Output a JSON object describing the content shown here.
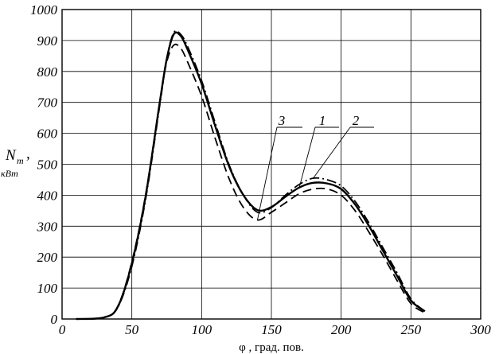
{
  "chart_data": {
    "type": "line",
    "title": "",
    "xlabel": "φ , град. пов.",
    "ylabel": {
      "main": "N",
      "subscript": "т",
      "comma": ",",
      "unit": "кВт"
    },
    "xlim": [
      0,
      300
    ],
    "ylim": [
      0,
      1000
    ],
    "x_ticks": [
      "0",
      "50",
      "100",
      "150",
      "200",
      "250",
      "300"
    ],
    "y_ticks": [
      "0",
      "100",
      "200",
      "300",
      "400",
      "500",
      "600",
      "700",
      "800",
      "900",
      "1000"
    ],
    "grid": true,
    "series": [
      {
        "name": "1",
        "style": "solid",
        "x": [
          10,
          30,
          40,
          50,
          60,
          70,
          75,
          80,
          85,
          90,
          100,
          110,
          120,
          130,
          140,
          150,
          160,
          170,
          180,
          190,
          200,
          210,
          220,
          230,
          240,
          250,
          260
        ],
        "y": [
          0,
          5,
          40,
          180,
          400,
          700,
          840,
          920,
          915,
          870,
          760,
          620,
          490,
          400,
          352,
          362,
          395,
          425,
          440,
          438,
          420,
          370,
          300,
          220,
          140,
          60,
          25
        ]
      },
      {
        "name": "2",
        "style": "dash-dot",
        "x": [
          10,
          30,
          40,
          50,
          60,
          70,
          75,
          80,
          85,
          90,
          100,
          110,
          120,
          130,
          140,
          150,
          160,
          170,
          180,
          190,
          200,
          210,
          220,
          230,
          240,
          250,
          260
        ],
        "y": [
          0,
          5,
          38,
          170,
          390,
          690,
          840,
          925,
          920,
          880,
          770,
          630,
          495,
          400,
          345,
          360,
          400,
          435,
          455,
          450,
          430,
          380,
          310,
          230,
          150,
          65,
          25
        ]
      },
      {
        "name": "3",
        "style": "dashed",
        "x": [
          10,
          30,
          40,
          50,
          60,
          70,
          75,
          80,
          85,
          90,
          100,
          110,
          120,
          130,
          140,
          150,
          160,
          170,
          180,
          190,
          200,
          210,
          220,
          230,
          240,
          250,
          260
        ],
        "y": [
          0,
          5,
          42,
          185,
          405,
          700,
          830,
          885,
          875,
          830,
          720,
          580,
          450,
          360,
          320,
          345,
          375,
          405,
          420,
          420,
          400,
          350,
          280,
          205,
          125,
          50,
          20
        ]
      }
    ],
    "annotations": [
      {
        "text": "3",
        "target_series": "3"
      },
      {
        "text": "1",
        "target_series": "1"
      },
      {
        "text": "2",
        "target_series": "2"
      }
    ]
  }
}
